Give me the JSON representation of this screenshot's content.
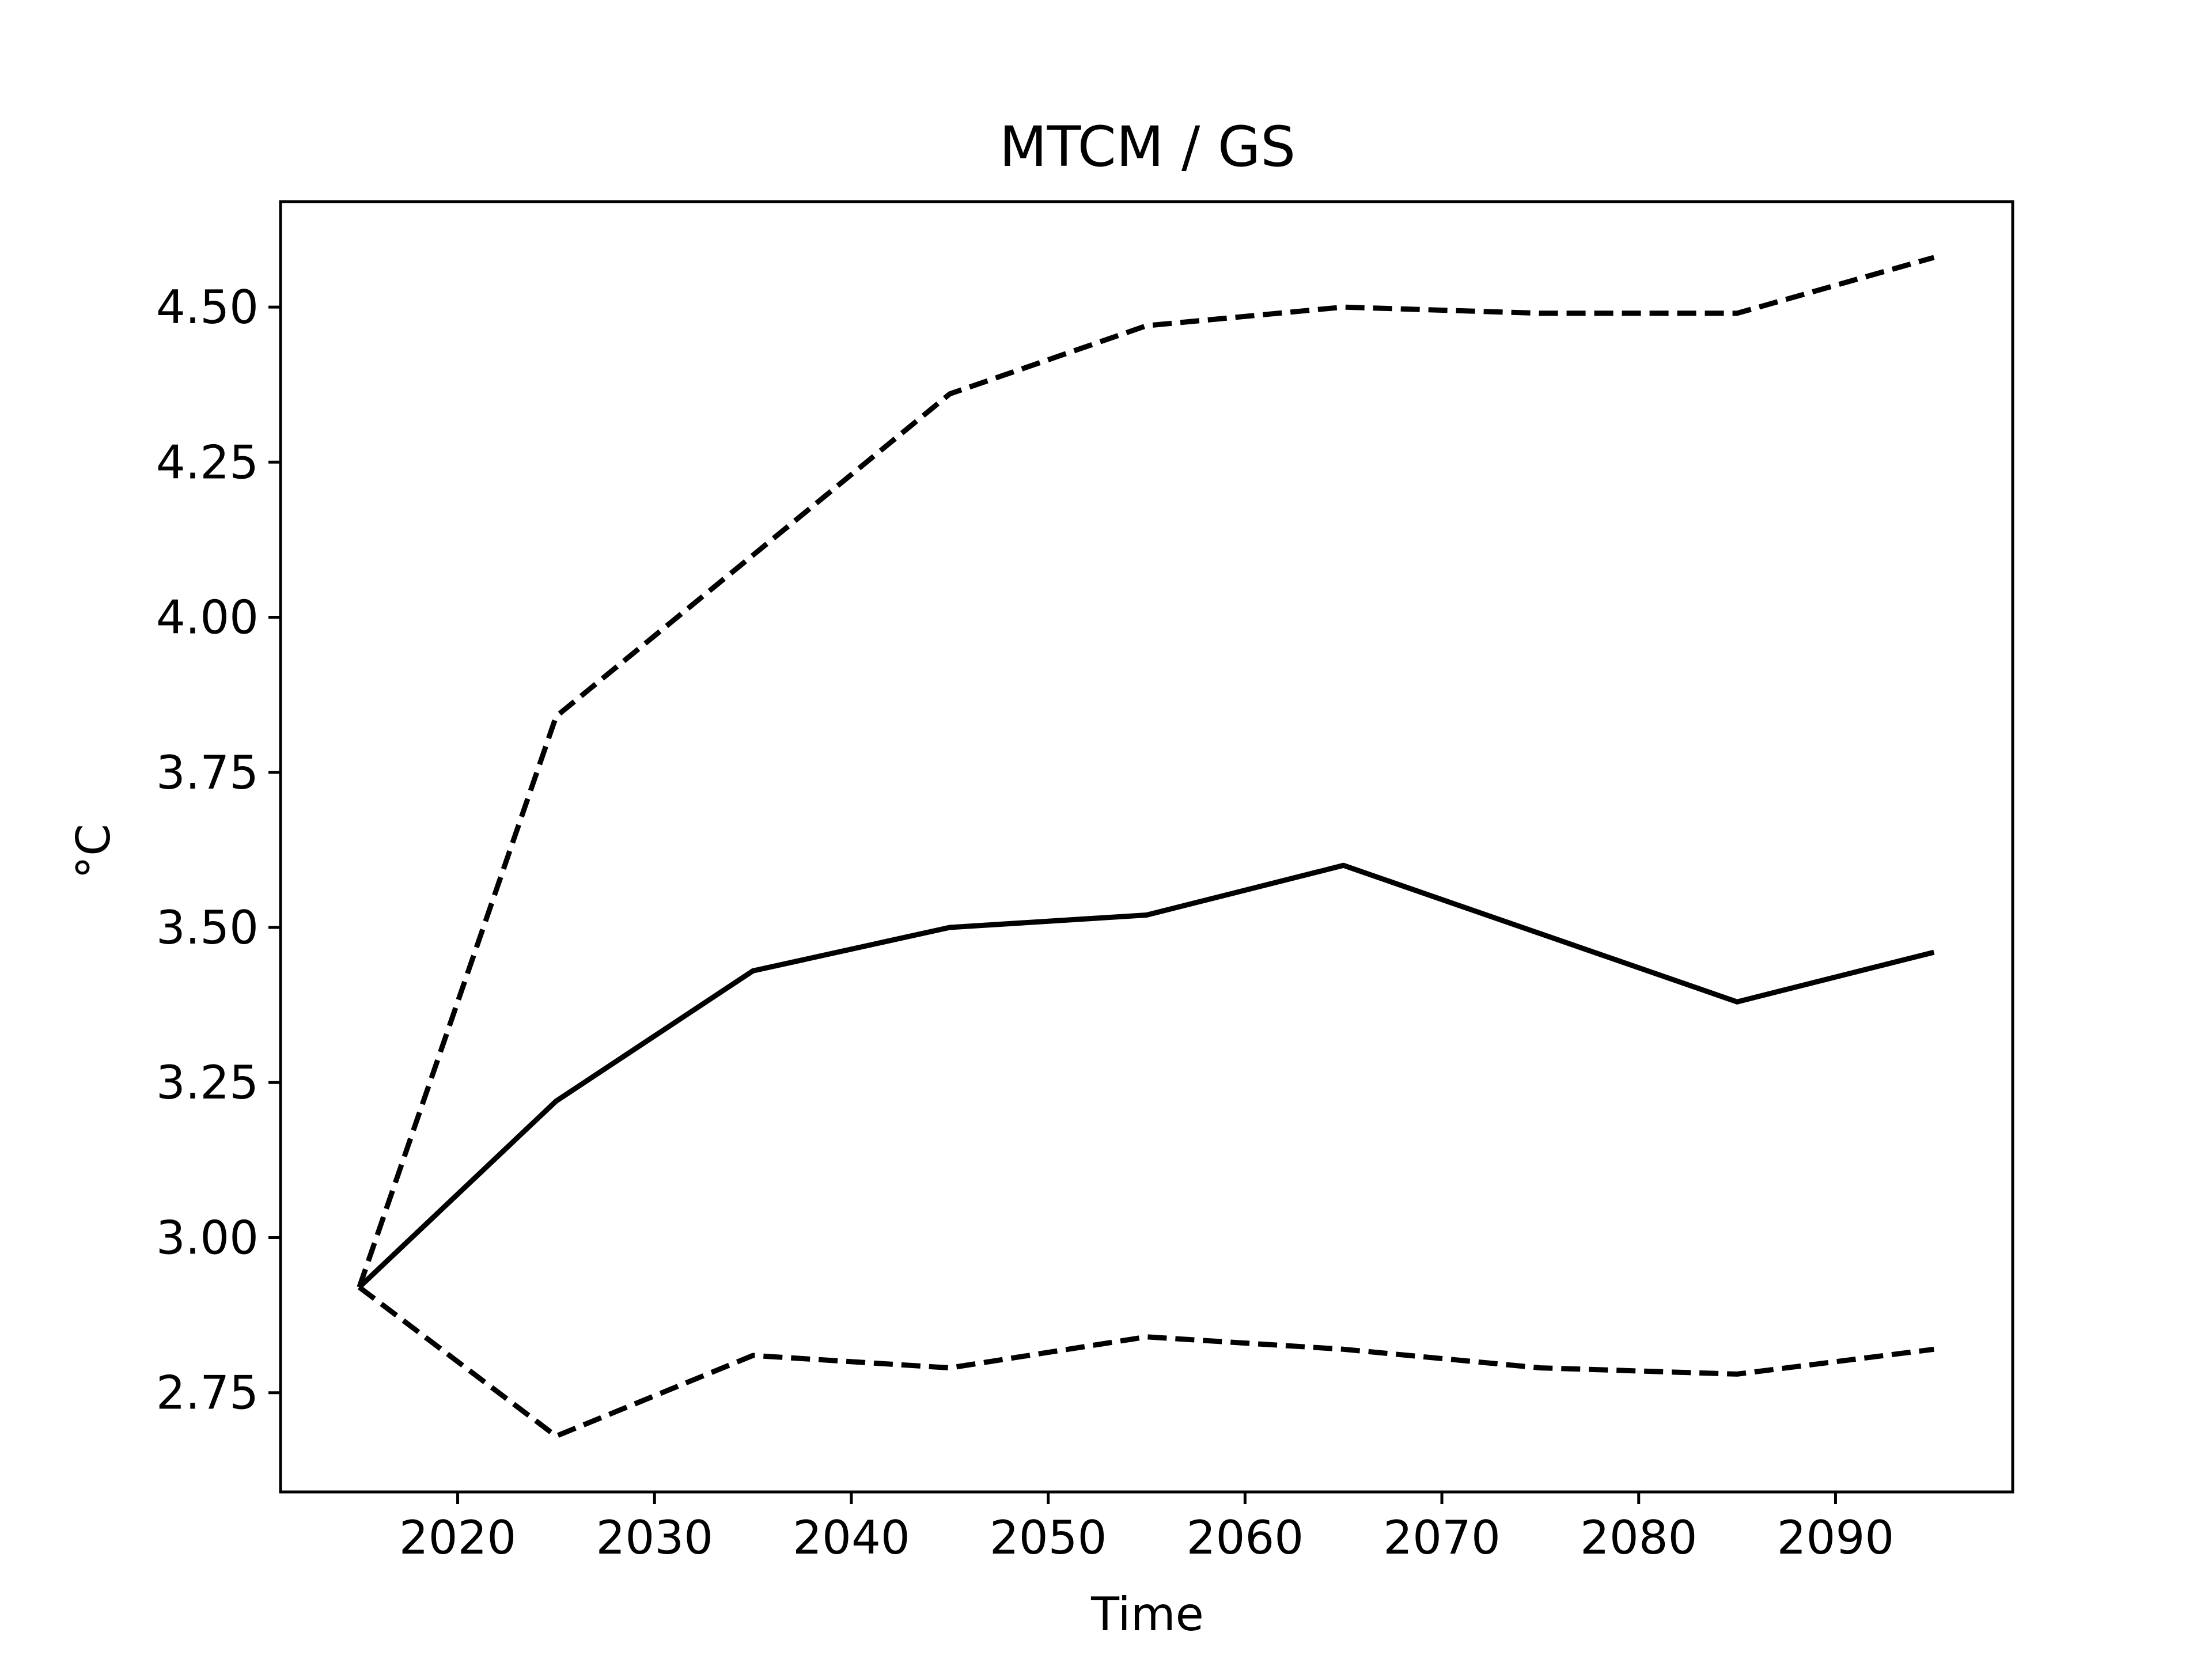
{
  "chart_data": {
    "type": "line",
    "title": "MTCM / GS",
    "xlabel": "Time",
    "ylabel": "°C",
    "xlim": [
      2011,
      2099
    ],
    "ylim": [
      2.59,
      4.67
    ],
    "grid": false,
    "x": [
      2015,
      2025,
      2035,
      2045,
      2055,
      2065,
      2075,
      2085,
      2095
    ],
    "series": [
      {
        "style": "solid",
        "color": "#000000",
        "values": [
          2.92,
          3.22,
          3.43,
          3.5,
          3.52,
          3.6,
          3.49,
          3.38,
          3.46
        ]
      },
      {
        "style": "dashed",
        "color": "#000000",
        "values": [
          2.92,
          3.84,
          4.1,
          4.36,
          4.47,
          4.5,
          4.49,
          4.49,
          4.58
        ]
      },
      {
        "style": "dashed",
        "color": "#000000",
        "values": [
          2.92,
          2.68,
          2.81,
          2.79,
          2.84,
          2.82,
          2.79,
          2.78,
          2.82
        ]
      }
    ],
    "xticks": [
      2020,
      2030,
      2040,
      2050,
      2060,
      2070,
      2080,
      2090
    ],
    "xtick_labels": [
      "2020",
      "2030",
      "2040",
      "2050",
      "2060",
      "2070",
      "2080",
      "2090"
    ],
    "yticks": [
      2.75,
      3.0,
      3.25,
      3.5,
      3.75,
      4.0,
      4.25,
      4.5
    ],
    "ytick_labels": [
      "2.75",
      "3.00",
      "3.25",
      "3.50",
      "3.75",
      "4.00",
      "4.25",
      "4.50"
    ]
  }
}
